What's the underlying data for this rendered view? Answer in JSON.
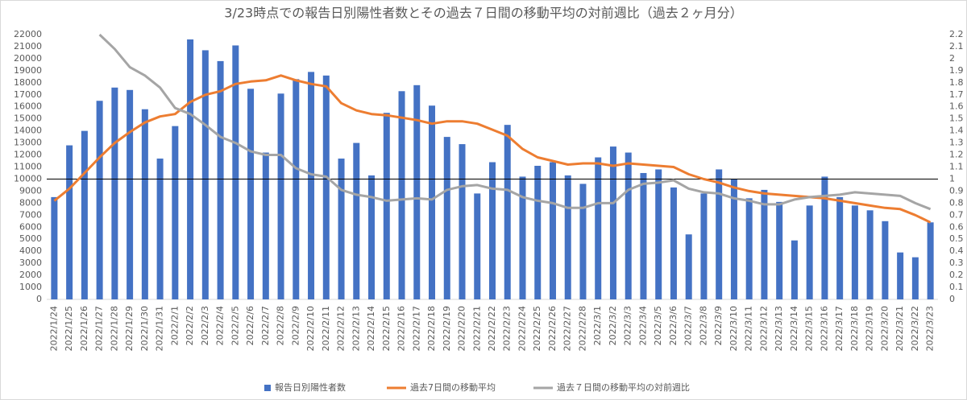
{
  "chart_data": {
    "type": "bar",
    "title": "3/23時点での報告日別陽性者数とその過去７日間の移動平均の対前週比（過去２ヶ月分）",
    "categories": [
      "2022/1/24",
      "2022/1/25",
      "2022/1/26",
      "2022/1/27",
      "2022/1/28",
      "2022/1/29",
      "2022/1/30",
      "2022/1/31",
      "2022/2/1",
      "2022/2/2",
      "2022/2/3",
      "2022/2/4",
      "2022/2/5",
      "2022/2/6",
      "2022/2/7",
      "2022/2/8",
      "2022/2/9",
      "2022/2/10",
      "2022/2/11",
      "2022/2/12",
      "2022/2/13",
      "2022/2/14",
      "2022/2/15",
      "2022/2/16",
      "2022/2/17",
      "2022/2/18",
      "2022/2/19",
      "2022/2/20",
      "2022/2/21",
      "2022/2/22",
      "2022/2/23",
      "2022/2/24",
      "2022/2/25",
      "2022/2/26",
      "2022/2/27",
      "2022/2/28",
      "2022/3/1",
      "2022/3/2",
      "2022/3/3",
      "2022/3/4",
      "2022/3/5",
      "2022/3/6",
      "2022/3/7",
      "2022/3/8",
      "2022/3/9",
      "2022/3/10",
      "2022/3/11",
      "2022/3/12",
      "2022/3/13",
      "2022/3/14",
      "2022/3/15",
      "2022/3/16",
      "2022/3/17",
      "2022/3/18",
      "2022/3/19",
      "2022/3/20",
      "2022/3/21",
      "2022/3/22",
      "2022/3/23"
    ],
    "series": [
      {
        "name": "報告日別陽性者数",
        "type": "bar",
        "color": "#4472c4",
        "values": [
          8500,
          12800,
          14000,
          16500,
          17600,
          17400,
          15800,
          11700,
          14400,
          21600,
          20700,
          19800,
          21100,
          17500,
          12200,
          17100,
          18300,
          18900,
          18600,
          11700,
          13000,
          10300,
          15500,
          17300,
          17800,
          16100,
          13500,
          12900,
          8800,
          11400,
          14500,
          10200,
          11100,
          11400,
          10300,
          9600,
          11800,
          12700,
          12200,
          10500,
          10800,
          9300,
          5400,
          8800,
          10800,
          10000,
          8400,
          9100,
          8100,
          4900,
          7800,
          10200,
          8500,
          7800,
          7400,
          6500,
          3900,
          3500,
          6400
        ]
      },
      {
        "name": "過去7日間の移動平均",
        "type": "line",
        "color": "#ed7d31",
        "values": [
          8200,
          9200,
          10500,
          11800,
          13000,
          13900,
          14700,
          15200,
          15400,
          16400,
          17000,
          17300,
          17900,
          18100,
          18200,
          18600,
          18200,
          17900,
          17700,
          16300,
          15700,
          15400,
          15300,
          15100,
          14900,
          14600,
          14800,
          14800,
          14600,
          14100,
          13600,
          12500,
          11800,
          11500,
          11200,
          11300,
          11300,
          11100,
          11300,
          11200,
          11100,
          11000,
          10400,
          10000,
          9700,
          9300,
          9000,
          8800,
          8700,
          8600,
          8500,
          8400,
          8200,
          8000,
          7800,
          7600,
          7500,
          7000,
          6400
        ]
      },
      {
        "name": "過去７日間の移動平均の対前週比",
        "type": "line",
        "axis": "y2",
        "color": "#a5a5a5",
        "values": [
          null,
          null,
          null,
          2.2,
          2.08,
          1.93,
          1.86,
          1.76,
          1.59,
          1.54,
          1.45,
          1.35,
          1.3,
          1.23,
          1.2,
          1.2,
          1.09,
          1.04,
          1.02,
          0.91,
          0.87,
          0.85,
          0.82,
          0.83,
          0.84,
          0.83,
          0.91,
          0.94,
          0.95,
          0.92,
          0.91,
          0.85,
          0.82,
          0.8,
          0.76,
          0.76,
          0.8,
          0.8,
          0.91,
          0.96,
          0.97,
          0.99,
          0.92,
          0.89,
          0.88,
          0.84,
          0.82,
          0.79,
          0.79,
          0.83,
          0.85,
          0.86,
          0.87,
          0.89,
          0.88,
          0.87,
          0.86,
          0.8,
          0.75
        ]
      }
    ],
    "ylim": [
      0,
      22000
    ],
    "yticks": [
      0,
      1000,
      2000,
      3000,
      4000,
      5000,
      6000,
      7000,
      8000,
      9000,
      10000,
      11000,
      12000,
      13000,
      14000,
      15000,
      16000,
      17000,
      18000,
      19000,
      20000,
      21000,
      22000
    ],
    "y2lim": [
      0,
      2.2
    ],
    "y2ticks": [
      0,
      0.1,
      0.2,
      0.3,
      0.4,
      0.5,
      0.6,
      0.7,
      0.8,
      0.9,
      1,
      1.1,
      1.2,
      1.3,
      1.4,
      1.5,
      1.6,
      1.7,
      1.8,
      1.9,
      2,
      2.1,
      2.2
    ],
    "reference_line": 10000,
    "legend": "bottom"
  }
}
